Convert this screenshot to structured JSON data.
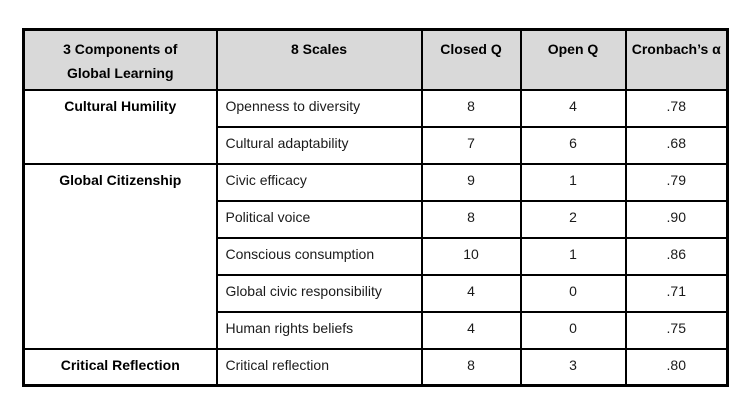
{
  "table": {
    "header": {
      "components_line1": "3 Components of",
      "components_line2": "Global Learning",
      "scales": "8 Scales",
      "closed_q": "Closed Q",
      "open_q": "Open Q",
      "cronbach": "Cronbach’s α"
    },
    "groups": [
      {
        "component": "Cultural Humility",
        "rows": [
          {
            "scale": "Openness to diversity",
            "closed_q": "8",
            "open_q": "4",
            "alpha": ".78"
          },
          {
            "scale": "Cultural adaptability",
            "closed_q": "7",
            "open_q": "6",
            "alpha": ".68"
          }
        ]
      },
      {
        "component": "Global Citizenship",
        "rows": [
          {
            "scale": "Civic efficacy",
            "closed_q": "9",
            "open_q": "1",
            "alpha": ".79"
          },
          {
            "scale": "Political voice",
            "closed_q": "8",
            "open_q": "2",
            "alpha": ".90"
          },
          {
            "scale": "Conscious consumption",
            "closed_q": "10",
            "open_q": "1",
            "alpha": ".86"
          },
          {
            "scale": "Global civic responsibility",
            "closed_q": "4",
            "open_q": "0",
            "alpha": ".71"
          },
          {
            "scale": "Human rights beliefs",
            "closed_q": "4",
            "open_q": "0",
            "alpha": ".75"
          }
        ]
      },
      {
        "component": "Critical Reflection",
        "rows": [
          {
            "scale": "Critical reflection",
            "closed_q": "8",
            "open_q": "3",
            "alpha": ".80"
          }
        ]
      }
    ],
    "colors": {
      "header_bg": "#d9d9d9",
      "border": "#000000"
    }
  }
}
